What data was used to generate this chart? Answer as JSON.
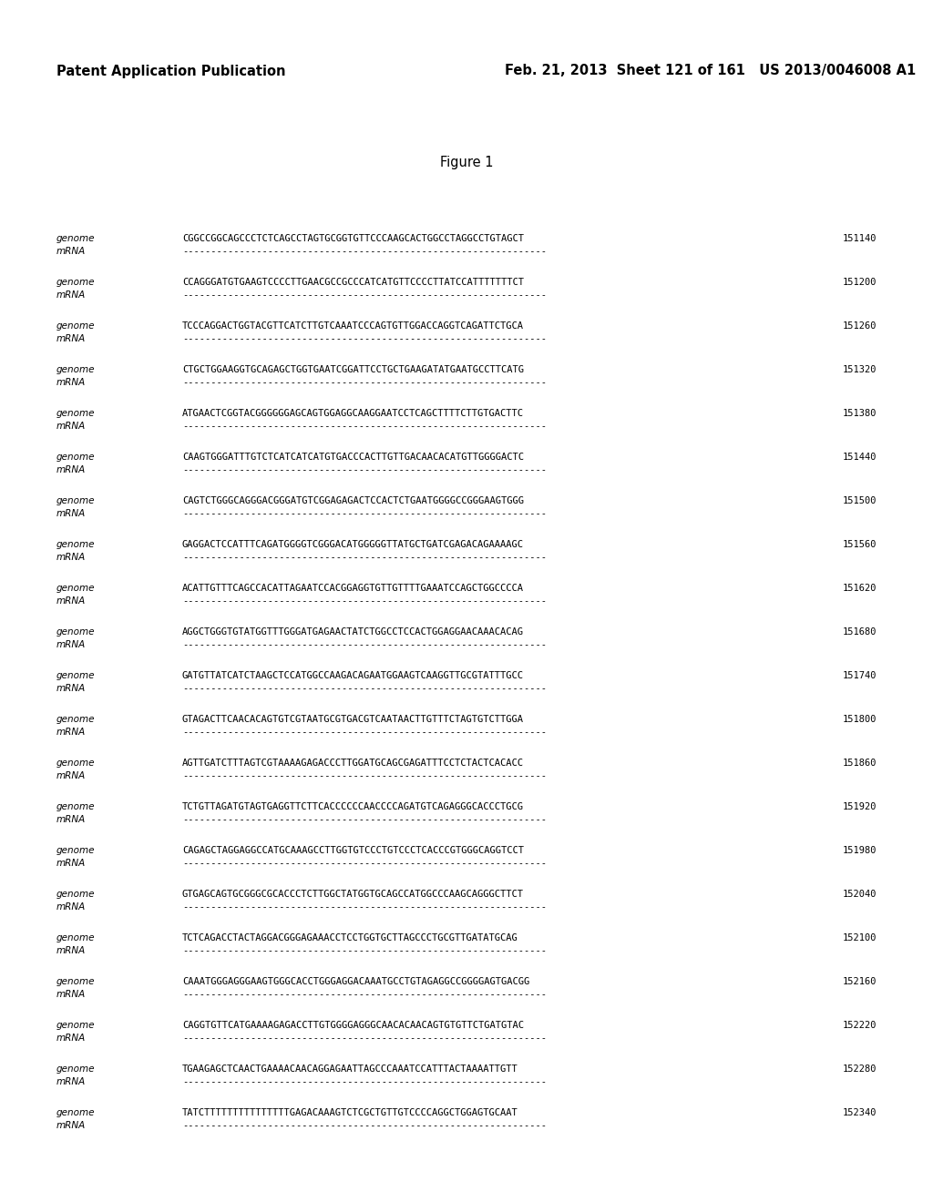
{
  "header_left": "Patent Application Publication",
  "header_right": "Feb. 21, 2013  Sheet 121 of 161   US 2013/0046008 A1",
  "figure_title": "Figure 1",
  "background_color": "#ffffff",
  "rows": [
    {
      "genome": "CGGCCGGCAGCCCTCTCAGCCTAGTGCGGTGTTCCCAAGCACTGGCCTAGGCCTGTAGCT",
      "number": "151140"
    },
    {
      "genome": "CCAGGGATGTGAAGTCCCCTTGAACGCCGCCCATCATGTTCCCCTTATCCATTTTTTTCT",
      "number": "151200"
    },
    {
      "genome": "TCCCAGGACTGGTACGTTCATCTTGTCAAATCCCAGTGTTGGACCAGGTCAGATTCTGCA",
      "number": "151260"
    },
    {
      "genome": "CTGCTGGAAGGTGCAGAGCTGGTGAATCGGATTCCTGCTGAAGATATGAATGCCTTCATG",
      "number": "151320"
    },
    {
      "genome": "ATGAACTCGGTACGGGGGGAGCAGTGGAGGCAAGGAATCCTCAGCTTTTCTTGTGACTTC",
      "number": "151380"
    },
    {
      "genome": "CAAGTGGGATTTGTCTCATCATCATGTGACCCACTTGTTGACAACACATGTTGGGGACTC",
      "number": "151440"
    },
    {
      "genome": "CAGTCTGGGCAGGGACGGGATGTCGGAGAGACTCCACTCTGAATGGGGCCGGGAAGTGGG",
      "number": "151500"
    },
    {
      "genome": "GAGGACTCCATTTCAGATGGGGTCGGGACATGGGGGTTATGCTGATCGAGACAGAAAAGC",
      "number": "151560"
    },
    {
      "genome": "ACATTGTTTCAGCCACATTAGAATCCACGGAGGTGTTGTTTTGAAATCCAGCTGGCCCCA",
      "number": "151620"
    },
    {
      "genome": "AGGCTGGGTGTATGGTTTGGGATGAGAACTATCTGGCCTCCACTGGAGGAACAAACACAG",
      "number": "151680"
    },
    {
      "genome": "GATGTTATCATCTAAGCTCCATGGCCAAGACAGAATGGAAGTCAAGGTTGCGTATTTGCC",
      "number": "151740"
    },
    {
      "genome": "GTAGACTTCAACACAGTGTCGTAATGCGTGACGTCAATAACTTGTTTCTAGTGTCTTGGA",
      "number": "151800"
    },
    {
      "genome": "AGTTGATCTTTAGTCGTAAAAGAGACCCTTGGATGCAGCGAGATTTCCTCTACTCACACC",
      "number": "151860"
    },
    {
      "genome": "TCTGTTAGATGTAGTGAGGTTCTTCACCCCCCAACCCCAGATGTCAGAGGGCACCCTGCG",
      "number": "151920"
    },
    {
      "genome": "CAGAGCTAGGAGGCCATGCAAAGCCTTGGTGTCCCTGTCCCTCACCCGTGGGCAGGTCCT",
      "number": "151980"
    },
    {
      "genome": "GTGAGCAGTGCGGGCGCACCCTCTTGGCTATGGTGCAGCCATGGCCCAAGCAGGGCTTCT",
      "number": "152040"
    },
    {
      "genome": "TCTCAGACCTACTAGGACGGGAGAAACCTCCTGGTGCTTAGCCCTGCGTTGATATGCAG",
      "number": "152100"
    },
    {
      "genome": "CAAATGGGAGGGAAGTGGGCACCTGGGAGGACAAATGCCTGTAGAGGCCGGGGAGTGACGG",
      "number": "152160"
    },
    {
      "genome": "CAGGTGTTCATGAAAAGAGACCTTGTGGGGAGGGCAACACAACAGTGTGTTCTGATGTAC",
      "number": "152220"
    },
    {
      "genome": "TGAAGAGCTCAACTGAAAACAACAGGAGAATTAGCCCAAATCCATTTACTAAAATTGTT",
      "number": "152280"
    },
    {
      "genome": "TATCTTTTTTTTTTTTTTTGAGACAAAGTCTCGCTGTTGTCCCCAGGCTGGAGTGCAAT",
      "number": "152340"
    }
  ],
  "mrna_dashes": "----------------------------------------------------------------",
  "label_genome": "genome",
  "label_mrna": "mRNA",
  "font_size_header": 10.5,
  "font_size_body": 7.5,
  "font_size_title": 10.5,
  "text_color": "#000000",
  "mono_font": "DejaVu Sans Mono",
  "sans_font": "DejaVu Sans"
}
